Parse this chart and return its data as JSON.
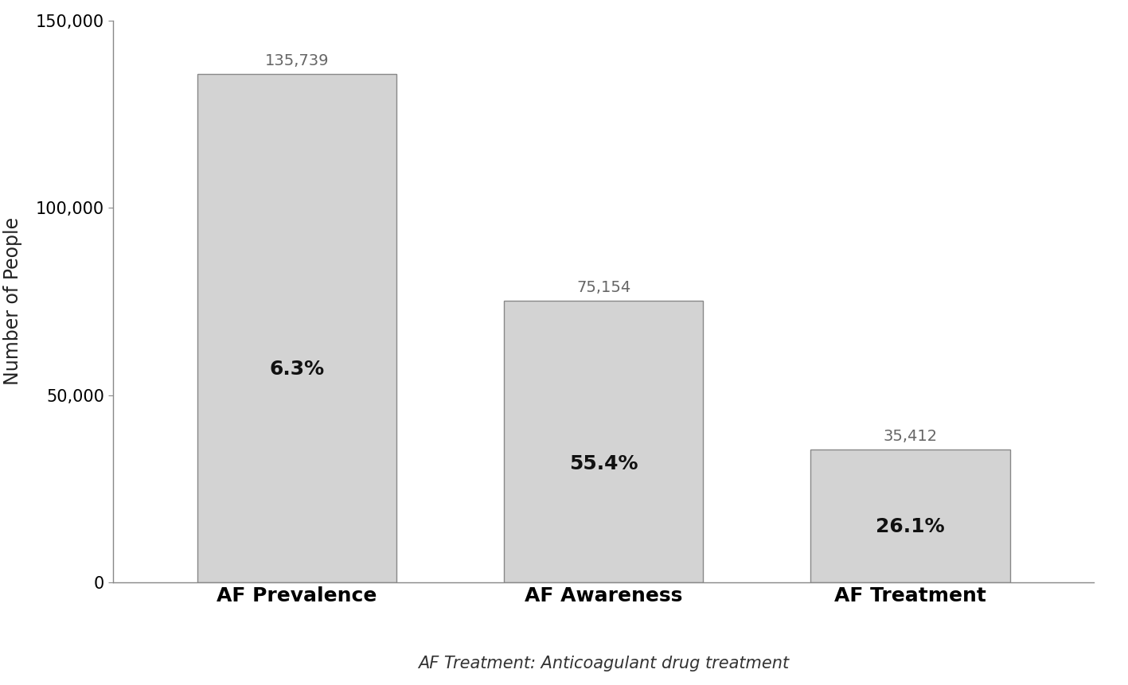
{
  "categories": [
    "AF Prevalence",
    "AF Awareness",
    "AF Treatment"
  ],
  "values": [
    135739,
    75154,
    35412
  ],
  "bar_labels": [
    "135,739",
    "75,154",
    "35,412"
  ],
  "bar_percentages": [
    "6.3%",
    "55.4%",
    "26.1%"
  ],
  "bar_color": "#d3d3d3",
  "bar_edgecolor": "#888888",
  "ylabel": "Number of People",
  "xlabel_note": "AF Treatment: Anticoagulant drug treatment",
  "ylim": [
    0,
    150000
  ],
  "yticks": [
    0,
    50000,
    100000,
    150000
  ],
  "ytick_labels": [
    "0",
    "50,000",
    "100,000",
    "150,000"
  ],
  "background_color": "#ffffff",
  "bar_label_fontsize": 14,
  "bar_pct_fontsize": 18,
  "ylabel_fontsize": 17,
  "xlabel_note_fontsize": 15,
  "xtick_fontsize": 18,
  "ytick_fontsize": 15,
  "bar_width": 0.65,
  "x_positions": [
    0,
    1,
    2
  ]
}
